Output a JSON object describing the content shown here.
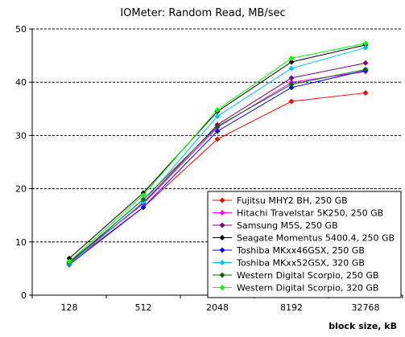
{
  "chart_data": {
    "type": "line",
    "title": "IOMeter: Random Read, MB/sec",
    "xlabel": "block size, kB",
    "ylabel": "",
    "x": [
      "128",
      "512",
      "2048",
      "8192",
      "32768"
    ],
    "x_scale": "log2 (categorical ticks)",
    "ylim": [
      0,
      50
    ],
    "yticks": [
      0,
      10,
      20,
      30,
      40,
      50
    ],
    "grid": "horizontal dashed",
    "legend_position": "bottom-right",
    "series": [
      {
        "name": "Fujitsu MHY2 BH, 250 GB",
        "color": "#ff0000",
        "values": [
          6.0,
          16.5,
          29.3,
          36.4,
          38.0
        ]
      },
      {
        "name": "Hitachi Travelstar 5K250, 250 GB",
        "color": "#ff00ff",
        "values": [
          6.1,
          17.2,
          31.5,
          40.0,
          42.0
        ]
      },
      {
        "name": "Samsung M5S, 250 GB",
        "color": "#800080",
        "values": [
          6.3,
          17.3,
          32.0,
          40.8,
          43.6
        ]
      },
      {
        "name": "Seagate Momentus 5400.4, 250 GB",
        "color": "#000000",
        "values": [
          6.9,
          19.2,
          34.5,
          43.8,
          47.0
        ]
      },
      {
        "name": "Toshiba MKxx46GSX, 250 GB",
        "color": "#0000ff",
        "values": [
          5.7,
          16.5,
          30.8,
          39.0,
          42.2
        ]
      },
      {
        "name": "Toshiba MKxx52GSX, 320 GB",
        "color": "#00bfff",
        "values": [
          5.8,
          17.5,
          33.6,
          42.6,
          46.5
        ]
      },
      {
        "name": "Western Digital Scorpio, 250 GB",
        "color": "#006400",
        "values": [
          6.1,
          18.0,
          31.7,
          39.6,
          42.4
        ]
      },
      {
        "name": "Western Digital Scorpio, 320 GB",
        "color": "#00ff00",
        "values": [
          6.3,
          18.8,
          34.8,
          44.5,
          47.3
        ]
      }
    ]
  }
}
